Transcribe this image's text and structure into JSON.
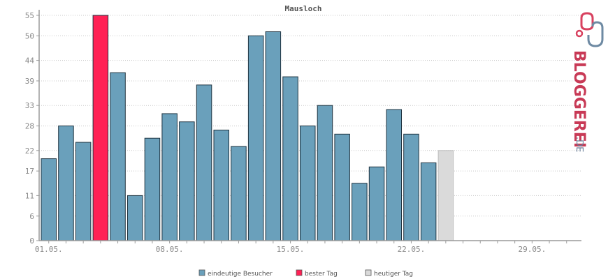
{
  "chart_data": {
    "type": "bar",
    "title": "Mausloch",
    "xlabel": "",
    "ylabel": "",
    "ylim": [
      0,
      56
    ],
    "yticks": [
      0,
      6,
      11,
      17,
      22,
      28,
      33,
      39,
      44,
      50,
      55
    ],
    "xtick_labels": [
      "01.05.",
      "08.05.",
      "15.05.",
      "22.05.",
      "29.05."
    ],
    "xtick_days": [
      1,
      8,
      15,
      22,
      29
    ],
    "days": [
      1,
      2,
      3,
      4,
      5,
      6,
      7,
      8,
      9,
      10,
      11,
      12,
      13,
      14,
      15,
      16,
      17,
      18,
      19,
      20,
      21,
      22,
      23,
      24,
      25,
      26,
      27,
      28,
      29,
      30,
      31
    ],
    "series": [
      {
        "name": "eindeutige Besucher",
        "values": [
          20,
          28,
          24,
          55,
          41,
          11,
          25,
          31,
          29,
          38,
          27,
          23,
          50,
          51,
          40,
          28,
          33,
          26,
          14,
          18,
          32,
          26,
          19,
          22,
          null,
          null,
          null,
          null,
          null,
          null,
          null
        ]
      }
    ],
    "best_day_index": 3,
    "today_index": 23,
    "colors": {
      "visitors": "#6aa0bb",
      "best": "#ff2155",
      "today": "#dadada"
    },
    "legend": [
      {
        "label": "eindeutige Besucher",
        "color": "#6aa0bb"
      },
      {
        "label": "bester Tag",
        "color": "#ff2155"
      },
      {
        "label": "heutiger Tag",
        "color": "#dadada"
      }
    ],
    "legend_position": "bottom",
    "grid": true
  },
  "logo": {
    "text": "BLOGGEREI",
    "suffix": ".DE",
    "color_main": "#c83a56",
    "color_suffix": "#6a7f9a"
  }
}
